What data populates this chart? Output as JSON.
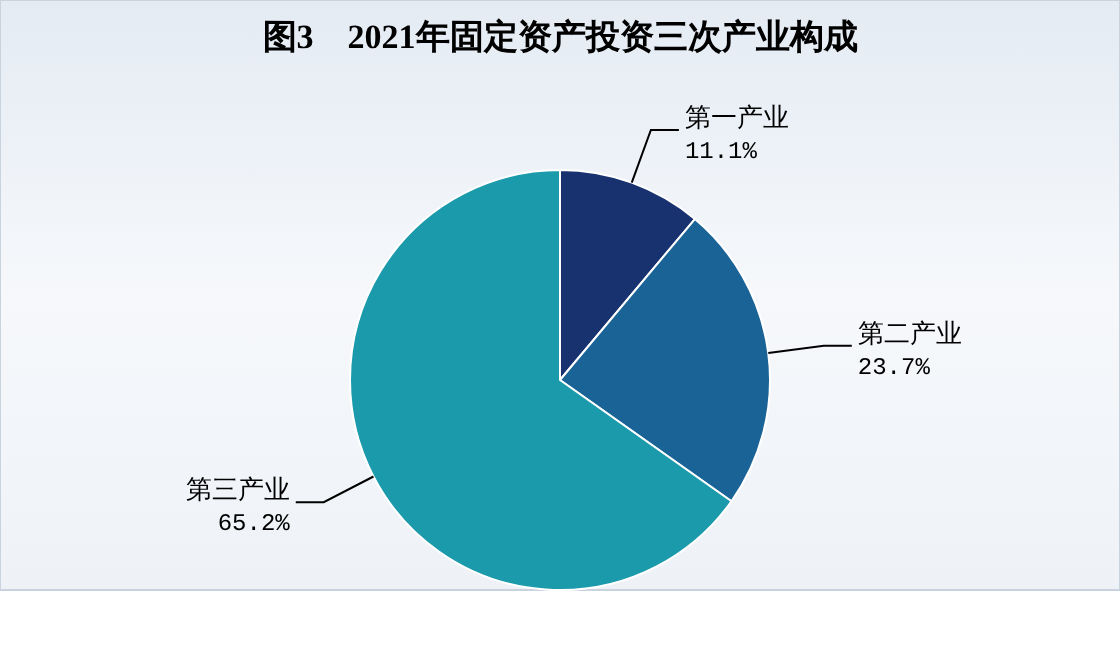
{
  "chart_data": {
    "type": "pie",
    "title": "图3　2021年固定资产投资三次产业构成",
    "categories": [
      "第一产业",
      "第二产业",
      "第三产业"
    ],
    "values": [
      11.1,
      23.7,
      65.2
    ],
    "value_labels": [
      "11.1%",
      "23.7%",
      "65.2%"
    ],
    "colors": [
      "#17326e",
      "#1a6396",
      "#1b9aab"
    ]
  }
}
